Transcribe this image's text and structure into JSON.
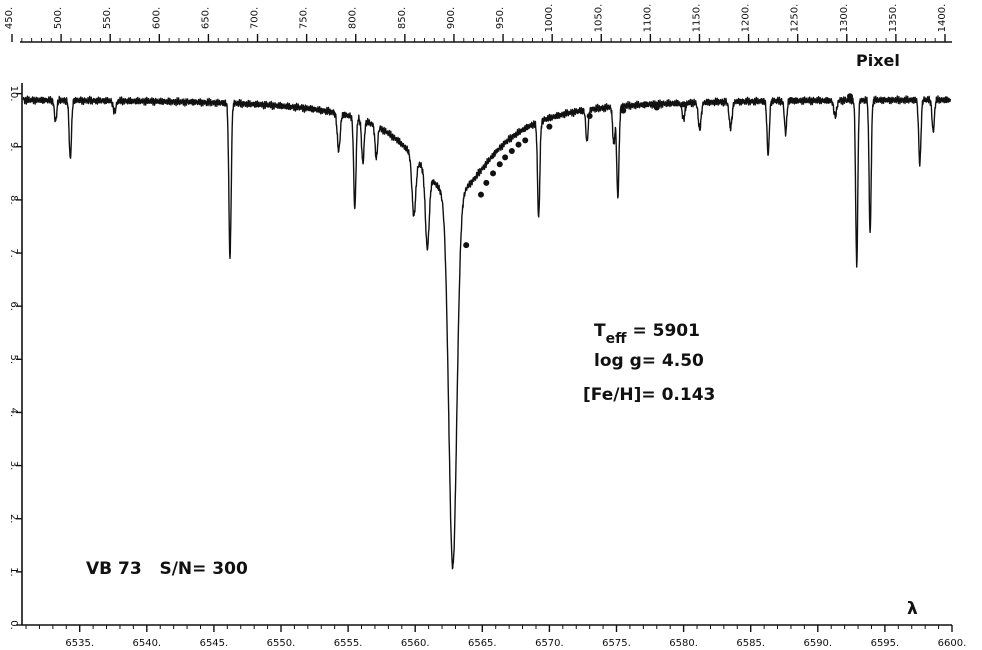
{
  "chart_data": {
    "type": "line",
    "top_axis": {
      "label": "Pixel",
      "ticks": [
        "450.",
        "500.",
        "550.",
        "600.",
        "650.",
        "700.",
        "750.",
        "800.",
        "850.",
        "900.",
        "950.",
        "1000.",
        "1050.",
        "1100.",
        "1150.",
        "1200.",
        "1250.",
        "1300.",
        "1350.",
        "1400."
      ],
      "range": [
        450,
        1400
      ]
    },
    "x_axis": {
      "label": "λ",
      "ticks": [
        "6535.",
        "6540.",
        "6545.",
        "6550.",
        "6555.",
        "6560.",
        "6565.",
        "6570.",
        "6575.",
        "6580.",
        "6585.",
        "6590.",
        "6595.",
        "6600."
      ],
      "range": [
        6530.7,
        6600
      ]
    },
    "y_axis": {
      "ticks": [
        "0.",
        "1.",
        "2.",
        "3.",
        "4.",
        "5.",
        "6.",
        "7.",
        "8.",
        "9.",
        "10."
      ],
      "range": [
        0,
        10.2
      ]
    },
    "continuum": 9.9,
    "lines": [
      {
        "center": 6533.2,
        "depth": 0.4,
        "width": 0.12
      },
      {
        "center": 6534.3,
        "depth": 1.1,
        "width": 0.12
      },
      {
        "center": 6537.6,
        "depth": 0.2,
        "width": 0.15
      },
      {
        "center": 6546.2,
        "depth": 2.9,
        "width": 0.12
      },
      {
        "center": 6554.3,
        "depth": 0.7,
        "width": 0.15
      },
      {
        "center": 6555.5,
        "depth": 1.7,
        "width": 0.12
      },
      {
        "center": 6556.1,
        "depth": 0.8,
        "width": 0.13
      },
      {
        "center": 6557.1,
        "depth": 0.6,
        "width": 0.13
      },
      {
        "center": 6559.9,
        "depth": 1.1,
        "width": 0.2
      },
      {
        "center": 6560.9,
        "depth": 1.4,
        "width": 0.2
      },
      {
        "center": 6569.2,
        "depth": 1.8,
        "width": 0.12
      },
      {
        "center": 6572.8,
        "depth": 0.6,
        "width": 0.12
      },
      {
        "center": 6574.8,
        "depth": 0.7,
        "width": 0.12
      },
      {
        "center": 6575.1,
        "depth": 1.7,
        "width": 0.12
      },
      {
        "center": 6580.0,
        "depth": 0.3,
        "width": 0.15
      },
      {
        "center": 6581.2,
        "depth": 0.5,
        "width": 0.15
      },
      {
        "center": 6583.5,
        "depth": 0.5,
        "width": 0.15
      },
      {
        "center": 6586.3,
        "depth": 1.0,
        "width": 0.12
      },
      {
        "center": 6587.6,
        "depth": 0.6,
        "width": 0.12
      },
      {
        "center": 6591.3,
        "depth": 0.3,
        "width": 0.15
      },
      {
        "center": 6592.9,
        "depth": 3.1,
        "width": 0.11
      },
      {
        "center": 6593.9,
        "depth": 2.5,
        "width": 0.11
      },
      {
        "center": 6597.6,
        "depth": 1.2,
        "width": 0.12
      },
      {
        "center": 6598.6,
        "depth": 0.6,
        "width": 0.12
      }
    ],
    "balmer_line": {
      "center": 6562.8,
      "core_depth": 7.0,
      "core_width": 0.42,
      "wing_depth": 1.8,
      "wing_width": 3.6
    },
    "fit_points": [
      {
        "x": 6563.8,
        "y": 7.15
      },
      {
        "x": 6564.9,
        "y": 8.1
      },
      {
        "x": 6565.3,
        "y": 8.32
      },
      {
        "x": 6565.8,
        "y": 8.5
      },
      {
        "x": 6566.3,
        "y": 8.67
      },
      {
        "x": 6566.7,
        "y": 8.8
      },
      {
        "x": 6567.2,
        "y": 8.92
      },
      {
        "x": 6567.7,
        "y": 9.04
      },
      {
        "x": 6568.2,
        "y": 9.12
      },
      {
        "x": 6570.0,
        "y": 9.38
      },
      {
        "x": 6573.0,
        "y": 9.58
      },
      {
        "x": 6575.5,
        "y": 9.68
      },
      {
        "x": 6578.0,
        "y": 9.74
      },
      {
        "x": 6580.0,
        "y": 9.8
      },
      {
        "x": 6582.5,
        "y": 9.85
      },
      {
        "x": 6588.0,
        "y": 9.88
      },
      {
        "x": 6592.4,
        "y": 9.95
      }
    ],
    "annotations": {
      "teff_label": "T",
      "teff_sub": "eff",
      "teff_value": "= 5901",
      "logg": "log g= 4.50",
      "feh": "[Fe/H]= 0.143",
      "star": "VB 73   S/N= 300"
    },
    "grid": false,
    "line_color": "#111111"
  }
}
